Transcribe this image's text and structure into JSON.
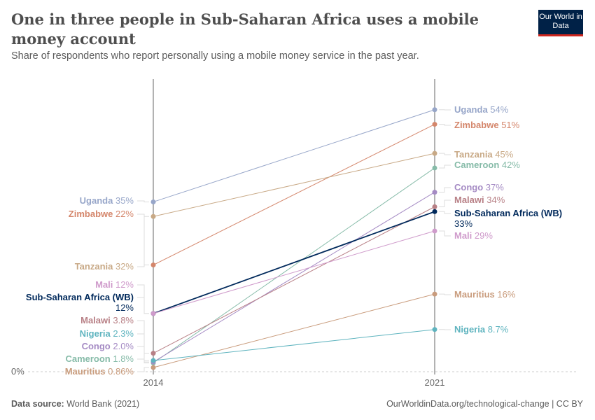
{
  "header": {
    "title": "One in three people in Sub-Saharan Africa uses a mobile money account",
    "subtitle": "Share of respondents who report personally using a mobile money service in the past year.",
    "logo": "Our World in Data"
  },
  "footer": {
    "source_label": "Data source:",
    "source": "World Bank (2021)",
    "url": "OurWorldinData.org/technological-change | CC BY"
  },
  "chart_data": {
    "type": "slope",
    "x": [
      "2014",
      "2021"
    ],
    "ylabel_tick": "0%",
    "ylim": [
      0,
      60
    ],
    "series": [
      {
        "name": "Uganda",
        "values": [
          35,
          54
        ],
        "labels": [
          "35%",
          "54%"
        ],
        "color": "#97a6c9"
      },
      {
        "name": "Zimbabwe",
        "values": [
          22,
          51
        ],
        "labels": [
          "22%",
          "51%"
        ],
        "color": "#d4866b"
      },
      {
        "name": "Tanzania",
        "values": [
          32,
          45
        ],
        "labels": [
          "32%",
          "45%"
        ],
        "color": "#c8a986"
      },
      {
        "name": "Cameroon",
        "values": [
          1.8,
          42
        ],
        "labels": [
          "1.8%",
          "42%"
        ],
        "color": "#86bba8"
      },
      {
        "name": "Congo",
        "values": [
          2.0,
          37
        ],
        "labels": [
          "2.0%",
          "37%"
        ],
        "color": "#a58bc4"
      },
      {
        "name": "Malawi",
        "values": [
          3.8,
          34
        ],
        "labels": [
          "3.8%",
          "34%"
        ],
        "color": "#b88086"
      },
      {
        "name": "Sub-Saharan Africa (WB)",
        "values": [
          12,
          33
        ],
        "labels": [
          "12%",
          "33%"
        ],
        "color": "#00295b"
      },
      {
        "name": "Mali",
        "values": [
          12,
          29
        ],
        "labels": [
          "12%",
          "29%"
        ],
        "color": "#cf9bcb"
      },
      {
        "name": "Mauritius",
        "values": [
          0.86,
          16
        ],
        "labels": [
          "0.86%",
          "16%"
        ],
        "color": "#c99c7d"
      },
      {
        "name": "Nigeria",
        "values": [
          2.3,
          8.7
        ],
        "labels": [
          "2.3%",
          "8.7%"
        ],
        "color": "#5fb4bf"
      }
    ]
  }
}
